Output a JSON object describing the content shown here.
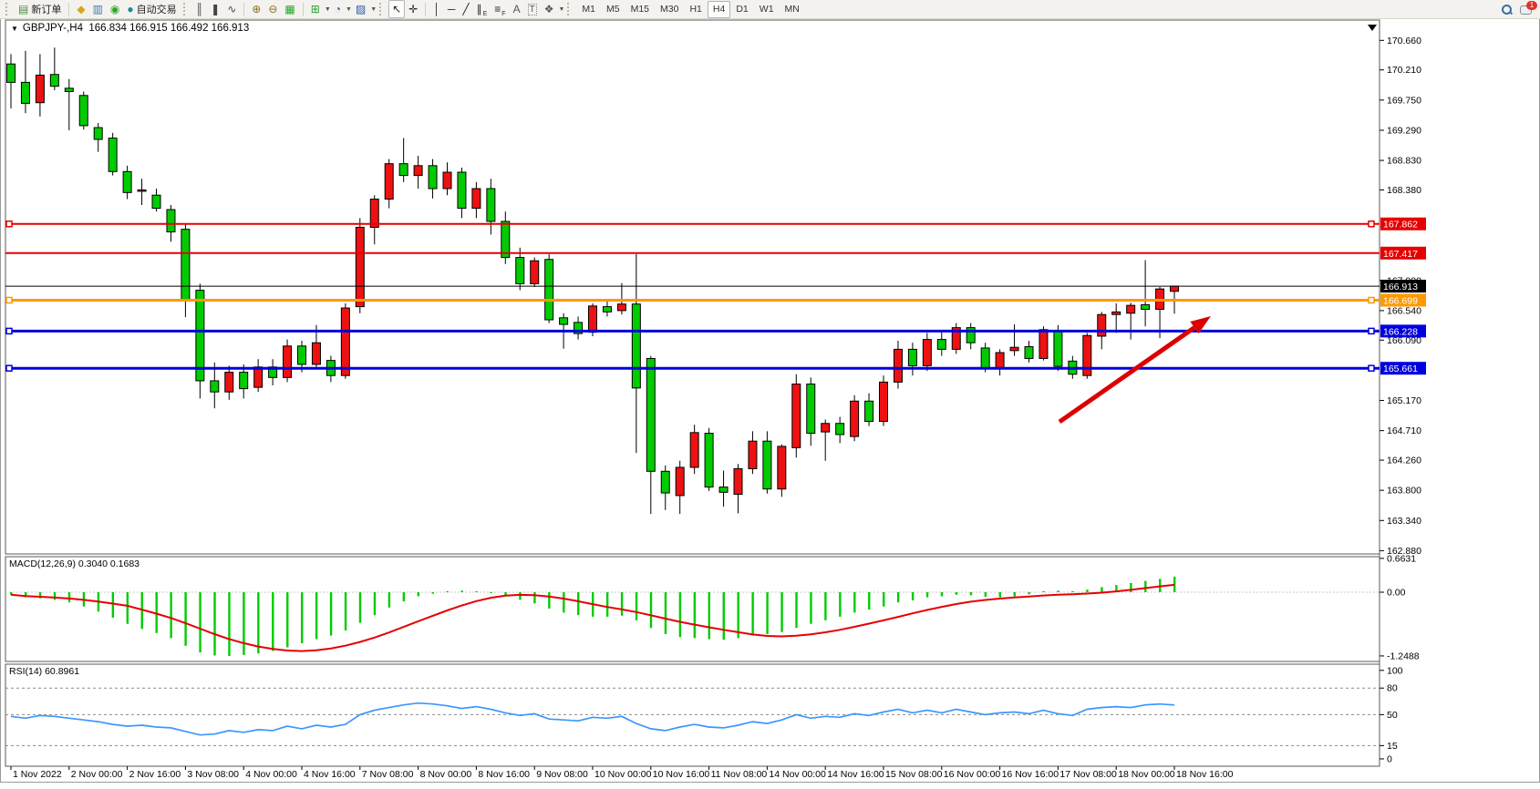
{
  "window": {
    "title_symbol": "GBPJPY-,H4",
    "title_ohlc": "166.834 166.915 166.492 166.913"
  },
  "toolbar": {
    "new_order_label": "新订单",
    "auto_trading_label": "自动交易",
    "notification_count": "1",
    "timeframes": [
      {
        "label": "M1"
      },
      {
        "label": "M5"
      },
      {
        "label": "M15"
      },
      {
        "label": "M30"
      },
      {
        "label": "H1"
      },
      {
        "label": "H4",
        "active": true
      },
      {
        "label": "D1"
      },
      {
        "label": "W1"
      },
      {
        "label": "MN"
      }
    ],
    "items": [
      {
        "type": "handle"
      },
      {
        "type": "button",
        "name": "new-order-button",
        "glyph": "▤",
        "color": "#4a8f4a",
        "label": "新订单"
      },
      {
        "type": "sep"
      },
      {
        "type": "icon",
        "name": "highlighter-icon",
        "glyph": "◆",
        "color": "#d9a520"
      },
      {
        "type": "icon",
        "name": "market-watch-icon",
        "glyph": "▥",
        "color": "#3c78b4"
      },
      {
        "type": "icon",
        "name": "signals-icon",
        "glyph": "◉",
        "color": "#2ba32b"
      },
      {
        "type": "button",
        "name": "auto-trading-button",
        "glyph": "●",
        "color": "#0e8f8f",
        "label": "自动交易"
      },
      {
        "type": "handle"
      },
      {
        "type": "icon",
        "name": "bar-chart-icon",
        "glyph": "║",
        "color": "#444444"
      },
      {
        "type": "icon",
        "name": "candlestick-chart-icon",
        "glyph": "❚",
        "color": "#444444"
      },
      {
        "type": "icon",
        "name": "line-chart-icon",
        "glyph": "∿",
        "color": "#444444"
      },
      {
        "type": "sep"
      },
      {
        "type": "icon",
        "name": "zoom-in-icon",
        "glyph": "⊕",
        "color": "#8a6d1c"
      },
      {
        "type": "icon",
        "name": "zoom-out-icon",
        "glyph": "⊖",
        "color": "#8a6d1c"
      },
      {
        "type": "icon",
        "name": "tile-windows-icon",
        "glyph": "▦",
        "color": "#2ba32b"
      },
      {
        "type": "sep"
      },
      {
        "type": "icon",
        "name": "indicators-icon",
        "glyph": "⊞",
        "color": "#2ba32b",
        "dropdown": true
      },
      {
        "type": "icon",
        "name": "periods-icon",
        "glyph": "◔",
        "color": "#2458a0",
        "dropdown": true
      },
      {
        "type": "icon",
        "name": "templates-icon",
        "glyph": "▨",
        "color": "#2458a0",
        "dropdown": true
      },
      {
        "type": "handle"
      },
      {
        "type": "icon",
        "name": "cursor-icon",
        "glyph": "↖",
        "color": "#222222",
        "active": true
      },
      {
        "type": "icon",
        "name": "crosshair-icon",
        "glyph": "✛",
        "color": "#222222"
      },
      {
        "type": "sep"
      },
      {
        "type": "icon",
        "name": "vertical-line-icon",
        "glyph": "│",
        "color": "#222222"
      },
      {
        "type": "icon",
        "name": "horizontal-line-icon",
        "glyph": "─",
        "color": "#222222"
      },
      {
        "type": "icon",
        "name": "trendline-icon",
        "glyph": "╱",
        "color": "#222222"
      },
      {
        "type": "icon",
        "name": "equidistant-channel-icon",
        "glyph": "∥",
        "sub": "E",
        "color": "#222222"
      },
      {
        "type": "icon",
        "name": "fibonacci-icon",
        "glyph": "≡",
        "sub": "F",
        "color": "#222222"
      },
      {
        "type": "icon",
        "name": "text-icon",
        "glyph": "A",
        "color": "#555555"
      },
      {
        "type": "icon",
        "name": "text-label-icon",
        "glyph": "T",
        "color": "#555555",
        "boxed": true
      },
      {
        "type": "icon",
        "name": "arrows-icon",
        "glyph": "❖",
        "color": "#555555",
        "dropdown": true
      },
      {
        "type": "handle"
      },
      {
        "type": "timeframes"
      },
      {
        "type": "spacer"
      },
      {
        "type": "icon",
        "name": "search-icon",
        "css": "magnifier"
      },
      {
        "type": "icon",
        "name": "notifications-icon",
        "css": "bubble",
        "badge": "1"
      }
    ]
  },
  "chart_data": {
    "type": "candlestick",
    "symbol": "GBPJPY-",
    "period": "H4",
    "current_bar": {
      "open": 166.834,
      "high": 166.915,
      "low": 166.492,
      "close": 166.913
    },
    "bull_color": "#ee1111",
    "bear_color": "#00cc00",
    "wick_color": "#000000",
    "price_axis": {
      "ylim": [
        162.83,
        170.97
      ],
      "ticks": [
        170.66,
        170.21,
        169.75,
        169.29,
        168.83,
        168.38,
        167.0,
        166.54,
        166.09,
        165.17,
        164.71,
        164.26,
        163.8,
        163.34,
        162.88
      ]
    },
    "hlines": [
      {
        "price": 167.862,
        "label": "167.862",
        "color": "#e60000",
        "width": 2,
        "selected": true
      },
      {
        "price": 167.417,
        "label": "167.417",
        "color": "#e60000",
        "width": 2,
        "selected": false
      },
      {
        "price": 166.913,
        "label": "166.913",
        "color": "#000000",
        "width": 1,
        "selected": false
      },
      {
        "price": 166.699,
        "label": "166.699",
        "color": "#ff9900",
        "width": 3,
        "selected": true
      },
      {
        "price": 166.228,
        "label": "166.228",
        "color": "#0000dd",
        "width": 3,
        "selected": true
      },
      {
        "price": 165.661,
        "label": "165.661",
        "color": "#0000dd",
        "width": 3,
        "selected": true
      }
    ],
    "arrow": {
      "from": [
        1162,
        463
      ],
      "to": [
        1328,
        347
      ],
      "color": "#dd0000"
    },
    "time_labels": [
      {
        "index": 0,
        "label": "1 Nov 2022"
      },
      {
        "index": 4,
        "label": "2 Nov 00:00"
      },
      {
        "index": 8,
        "label": "2 Nov 16:00"
      },
      {
        "index": 12,
        "label": "3 Nov 08:00"
      },
      {
        "index": 16,
        "label": "4 Nov 00:00"
      },
      {
        "index": 20,
        "label": "4 Nov 16:00"
      },
      {
        "index": 24,
        "label": "7 Nov 08:00"
      },
      {
        "index": 28,
        "label": "8 Nov 00:00"
      },
      {
        "index": 32,
        "label": "8 Nov 16:00"
      },
      {
        "index": 36,
        "label": "9 Nov 08:00"
      },
      {
        "index": 40,
        "label": "10 Nov 00:00"
      },
      {
        "index": 44,
        "label": "10 Nov 16:00"
      },
      {
        "index": 48,
        "label": "11 Nov 08:00"
      },
      {
        "index": 52,
        "label": "14 Nov 00:00"
      },
      {
        "index": 56,
        "label": "14 Nov 16:00"
      },
      {
        "index": 60,
        "label": "15 Nov 08:00"
      },
      {
        "index": 64,
        "label": "16 Nov 00:00"
      },
      {
        "index": 68,
        "label": "16 Nov 16:00"
      },
      {
        "index": 72,
        "label": "17 Nov 08:00"
      },
      {
        "index": 76,
        "label": "18 Nov 00:00"
      },
      {
        "index": 80,
        "label": "18 Nov 16:00"
      }
    ],
    "candles": [
      [
        170.3,
        170.45,
        169.62,
        170.02
      ],
      [
        170.02,
        170.5,
        169.55,
        169.7
      ],
      [
        169.71,
        170.45,
        169.5,
        170.13
      ],
      [
        170.14,
        170.55,
        169.9,
        169.96
      ],
      [
        169.93,
        170.07,
        169.29,
        169.88
      ],
      [
        169.82,
        169.88,
        169.3,
        169.36
      ],
      [
        169.33,
        169.4,
        168.96,
        169.15
      ],
      [
        169.17,
        169.25,
        168.6,
        168.66
      ],
      [
        168.66,
        168.75,
        168.24,
        168.34
      ],
      [
        168.36,
        168.55,
        168.15,
        168.38
      ],
      [
        168.3,
        168.4,
        168.05,
        168.1
      ],
      [
        168.08,
        168.15,
        167.59,
        167.74
      ],
      [
        167.78,
        167.85,
        166.44,
        166.71
      ],
      [
        166.85,
        166.95,
        165.2,
        165.47
      ],
      [
        165.47,
        165.75,
        165.05,
        165.3
      ],
      [
        165.3,
        165.7,
        165.18,
        165.6
      ],
      [
        165.6,
        165.72,
        165.2,
        165.35
      ],
      [
        165.37,
        165.8,
        165.3,
        165.68
      ],
      [
        165.68,
        165.8,
        165.4,
        165.52
      ],
      [
        165.52,
        166.1,
        165.45,
        166.0
      ],
      [
        166.0,
        166.08,
        165.6,
        165.72
      ],
      [
        165.72,
        166.32,
        165.65,
        166.05
      ],
      [
        165.78,
        165.85,
        165.45,
        165.55
      ],
      [
        165.55,
        166.65,
        165.5,
        166.58
      ],
      [
        166.6,
        167.95,
        166.5,
        167.81
      ],
      [
        167.81,
        168.3,
        167.55,
        168.24
      ],
      [
        168.24,
        168.85,
        168.1,
        168.78
      ],
      [
        168.78,
        169.17,
        168.5,
        168.6
      ],
      [
        168.6,
        168.9,
        168.4,
        168.75
      ],
      [
        168.75,
        168.85,
        168.25,
        168.4
      ],
      [
        168.4,
        168.8,
        168.3,
        168.65
      ],
      [
        168.65,
        168.72,
        167.95,
        168.1
      ],
      [
        168.1,
        168.5,
        167.95,
        168.4
      ],
      [
        168.4,
        168.55,
        167.7,
        167.9
      ],
      [
        167.9,
        168.05,
        167.25,
        167.35
      ],
      [
        167.35,
        167.5,
        166.85,
        166.95
      ],
      [
        166.95,
        167.35,
        166.9,
        167.3
      ],
      [
        167.32,
        167.4,
        166.35,
        166.4
      ],
      [
        166.43,
        166.5,
        165.96,
        166.33
      ],
      [
        166.36,
        166.45,
        166.1,
        166.19
      ],
      [
        166.21,
        166.65,
        166.15,
        166.61
      ],
      [
        166.6,
        166.68,
        166.45,
        166.52
      ],
      [
        166.54,
        166.96,
        166.48,
        166.64
      ],
      [
        166.64,
        167.4,
        164.37,
        165.36
      ],
      [
        165.81,
        165.85,
        163.44,
        164.09
      ],
      [
        164.09,
        164.18,
        163.5,
        163.76
      ],
      [
        163.72,
        164.25,
        163.44,
        164.15
      ],
      [
        164.15,
        164.8,
        164.05,
        164.68
      ],
      [
        164.67,
        164.75,
        163.79,
        163.85
      ],
      [
        163.85,
        164.1,
        163.55,
        163.77
      ],
      [
        163.74,
        164.2,
        163.45,
        164.13
      ],
      [
        164.13,
        164.7,
        164.05,
        164.55
      ],
      [
        164.55,
        164.7,
        163.75,
        163.82
      ],
      [
        163.82,
        164.5,
        163.7,
        164.47
      ],
      [
        164.45,
        165.57,
        164.3,
        165.42
      ],
      [
        165.42,
        165.52,
        164.48,
        164.67
      ],
      [
        164.69,
        164.88,
        164.25,
        164.82
      ],
      [
        164.82,
        164.92,
        164.52,
        164.65
      ],
      [
        164.62,
        165.25,
        164.55,
        165.16
      ],
      [
        165.16,
        165.28,
        164.78,
        164.85
      ],
      [
        164.85,
        165.55,
        164.78,
        165.45
      ],
      [
        165.45,
        166.08,
        165.35,
        165.95
      ],
      [
        165.95,
        166.05,
        165.55,
        165.7
      ],
      [
        165.7,
        166.2,
        165.62,
        166.1
      ],
      [
        166.1,
        166.22,
        165.85,
        165.95
      ],
      [
        165.95,
        166.35,
        165.88,
        166.28
      ],
      [
        166.28,
        166.35,
        165.95,
        166.05
      ],
      [
        165.97,
        166.05,
        165.6,
        165.66
      ],
      [
        165.66,
        165.95,
        165.55,
        165.9
      ],
      [
        165.93,
        166.33,
        165.85,
        165.98
      ],
      [
        165.99,
        166.08,
        165.75,
        165.81
      ],
      [
        165.81,
        166.3,
        165.78,
        166.25
      ],
      [
        166.24,
        166.32,
        165.62,
        165.69
      ],
      [
        165.77,
        165.85,
        165.5,
        165.57
      ],
      [
        165.55,
        166.2,
        165.5,
        166.16
      ],
      [
        166.15,
        166.52,
        165.95,
        166.48
      ],
      [
        166.48,
        166.65,
        166.2,
        166.52
      ],
      [
        166.5,
        166.66,
        166.1,
        166.62
      ],
      [
        166.63,
        167.31,
        166.3,
        166.56
      ],
      [
        166.56,
        166.9,
        166.12,
        166.87
      ],
      [
        166.834,
        166.915,
        166.492,
        166.913
      ]
    ],
    "macd": {
      "label": "MACD(12,26,9) 0.3040 0.1683",
      "params": "12,26,9",
      "value": 0.304,
      "signal": 0.1683,
      "ylim": [
        -1.357,
        0.696
      ],
      "ticks": [
        {
          "v": 0.6631,
          "label": "0.6631"
        },
        {
          "v": 0.0,
          "label": "0.00"
        },
        {
          "v": -1.2488,
          "label": "-1.2488"
        }
      ],
      "histogram_color": "#00cc00",
      "signal_color": "#e60000",
      "values": [
        -0.05,
        -0.1,
        -0.12,
        -0.15,
        -0.2,
        -0.28,
        -0.38,
        -0.5,
        -0.62,
        -0.72,
        -0.8,
        -0.9,
        -1.05,
        -1.18,
        -1.24,
        -1.25,
        -1.23,
        -1.2,
        -1.15,
        -1.08,
        -1.0,
        -0.92,
        -0.85,
        -0.75,
        -0.6,
        -0.45,
        -0.3,
        -0.18,
        -0.08,
        -0.03,
        0.02,
        0.03,
        0.02,
        -0.02,
        -0.08,
        -0.15,
        -0.22,
        -0.32,
        -0.4,
        -0.45,
        -0.48,
        -0.48,
        -0.46,
        -0.55,
        -0.7,
        -0.82,
        -0.88,
        -0.9,
        -0.92,
        -0.93,
        -0.9,
        -0.85,
        -0.82,
        -0.78,
        -0.7,
        -0.62,
        -0.55,
        -0.48,
        -0.4,
        -0.34,
        -0.28,
        -0.2,
        -0.16,
        -0.1,
        -0.08,
        -0.05,
        -0.06,
        -0.09,
        -0.1,
        -0.08,
        -0.04,
        0.02,
        0.03,
        0.02,
        0.05,
        0.1,
        0.14,
        0.18,
        0.22,
        0.26,
        0.304
      ]
    },
    "rsi": {
      "label": "RSI(14) 60.8961",
      "period": 14,
      "value": 60.8961,
      "ylim": [
        -8.3,
        107
      ],
      "ticks": [
        100,
        80,
        50,
        15,
        0
      ],
      "levels": [
        80,
        50,
        15
      ],
      "line_color": "#3b97ff",
      "values": [
        48,
        46,
        49,
        48,
        46,
        44,
        42,
        39,
        37,
        38,
        36,
        35,
        31,
        27,
        28,
        32,
        30,
        33,
        32,
        37,
        34,
        38,
        36,
        39,
        50,
        55,
        58,
        61,
        63,
        62,
        60,
        57,
        59,
        56,
        52,
        49,
        51,
        45,
        44,
        43,
        47,
        46,
        48,
        40,
        34,
        32,
        36,
        39,
        36,
        35,
        38,
        42,
        40,
        44,
        50,
        46,
        48,
        47,
        51,
        49,
        53,
        56,
        52,
        55,
        52,
        56,
        53,
        50,
        52,
        53,
        51,
        55,
        51,
        49,
        56,
        58,
        59,
        58,
        61,
        62,
        60.9
      ]
    }
  }
}
